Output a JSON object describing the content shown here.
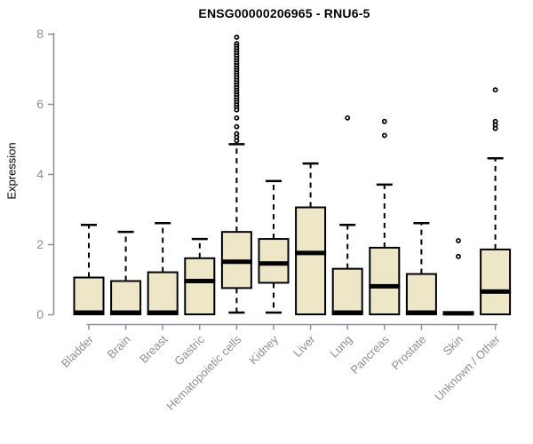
{
  "chart_data": {
    "type": "box",
    "title": "ENSG00000206965 - RNU6-5",
    "ylabel": "Expression",
    "xlabel": "",
    "ylim": [
      0,
      8
    ],
    "yticks": [
      0,
      2,
      4,
      6,
      8
    ],
    "grid": false,
    "legend": null,
    "categories": [
      "Bladder",
      "Brain",
      "Breast",
      "Gastric",
      "Hematopoietic cells",
      "Kidney",
      "Liver",
      "Lung",
      "Pancreas",
      "Prostate",
      "Skin",
      "Unknown / Other"
    ],
    "boxes": [
      {
        "label": "Bladder",
        "low": 0,
        "q1": 0,
        "median": 0.05,
        "q3": 1.05,
        "high": 2.55,
        "outliers": []
      },
      {
        "label": "Brain",
        "low": 0,
        "q1": 0,
        "median": 0.05,
        "q3": 0.95,
        "high": 2.35,
        "outliers": []
      },
      {
        "label": "Breast",
        "low": 0,
        "q1": 0,
        "median": 0.05,
        "q3": 1.2,
        "high": 2.6,
        "outliers": []
      },
      {
        "label": "Gastric",
        "low": 0,
        "q1": 0,
        "median": 0.95,
        "q3": 1.6,
        "high": 2.15,
        "outliers": []
      },
      {
        "label": "Hematopoietic cells",
        "low": 0.05,
        "q1": 0.75,
        "median": 1.5,
        "q3": 2.35,
        "high": 4.85,
        "outliers": [
          7.9,
          7.72,
          7.65,
          7.58,
          7.51,
          7.44,
          7.37,
          7.3,
          7.23,
          7.16,
          7.09,
          7.02,
          6.95,
          6.88,
          6.81,
          6.74,
          6.67,
          6.6,
          6.53,
          6.46,
          6.39,
          6.32,
          6.25,
          6.18,
          6.11,
          6.04,
          5.97,
          5.9,
          5.83,
          5.6,
          5.35,
          5.15,
          5.05,
          4.95
        ]
      },
      {
        "label": "Kidney",
        "low": 0.05,
        "q1": 0.9,
        "median": 1.45,
        "q3": 2.15,
        "high": 3.8,
        "outliers": []
      },
      {
        "label": "Liver",
        "low": 0,
        "q1": 0,
        "median": 1.75,
        "q3": 3.05,
        "high": 4.3,
        "outliers": []
      },
      {
        "label": "Lung",
        "low": 0,
        "q1": 0,
        "median": 0.05,
        "q3": 1.3,
        "high": 2.55,
        "outliers": [
          5.6
        ]
      },
      {
        "label": "Pancreas",
        "low": 0,
        "q1": 0,
        "median": 0.8,
        "q3": 1.9,
        "high": 3.7,
        "outliers": [
          5.5,
          5.1
        ]
      },
      {
        "label": "Prostate",
        "low": 0,
        "q1": 0,
        "median": 0.05,
        "q3": 1.15,
        "high": 2.6,
        "outliers": []
      },
      {
        "label": "Skin",
        "low": 0,
        "q1": 0,
        "median": 0.03,
        "q3": 0.05,
        "high": 0.05,
        "outliers": [
          2.1,
          1.65
        ]
      },
      {
        "label": "Unknown / Other",
        "low": 0,
        "q1": 0,
        "median": 0.65,
        "q3": 1.85,
        "high": 4.45,
        "outliers": [
          6.4,
          5.5,
          5.4,
          5.3
        ]
      }
    ],
    "colors": {
      "box_fill": "#ede7c8",
      "box_border": "#000000",
      "median": "#000000",
      "whisker": "#000000",
      "axis": "#8a9099",
      "tick_labels": "#8a9099",
      "title": "#000000",
      "background": "#ffffff"
    }
  }
}
